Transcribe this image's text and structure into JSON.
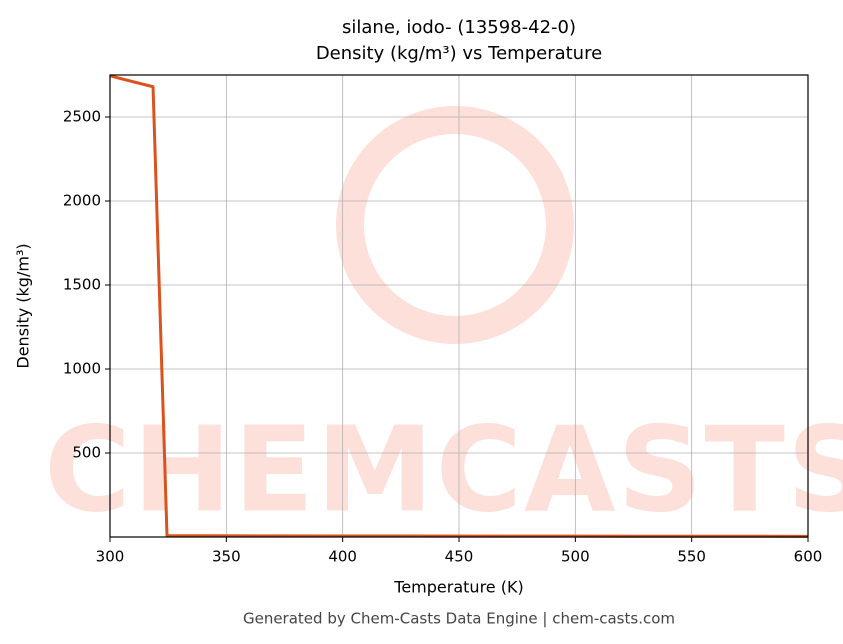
{
  "chart_data": {
    "type": "line",
    "title": "silane, iodo- (13598-42-0)",
    "subtitle": "Density (kg/m³) vs Temperature",
    "x_label": "Temperature (K)",
    "y_label": "Density (kg/m³)",
    "footer": "Generated by Chem-Casts Data Engine | chem-casts.com",
    "watermark": "CHEMCASTS",
    "x": [
      300,
      318.5,
      324.5,
      400,
      500,
      600
    ],
    "series": [
      {
        "name": "Density",
        "color": "#d9531e",
        "values": [
          2745,
          2680,
          8,
          6,
          5,
          4
        ]
      }
    ],
    "xlim": [
      300,
      600
    ],
    "xticks": [
      300,
      350,
      400,
      450,
      500,
      550,
      600
    ],
    "ylim": [
      0,
      2750
    ],
    "yticks": [
      500,
      1000,
      1500,
      2000,
      2500
    ],
    "grid": true
  }
}
